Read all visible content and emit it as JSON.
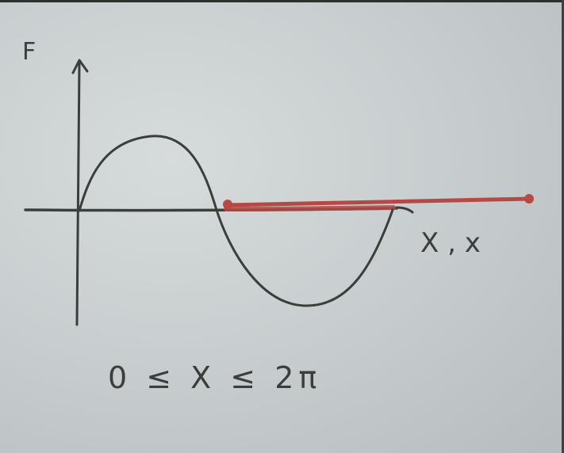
{
  "sketch": {
    "vertical_axis_label": "F",
    "horizontal_axis_label": "X , x",
    "domain_caption": "0 ≤ X ≤ 2π",
    "ink_color": "#3b3f3c",
    "red_line_color": "#b54a45",
    "paper_color": "#cfd4d5"
  }
}
